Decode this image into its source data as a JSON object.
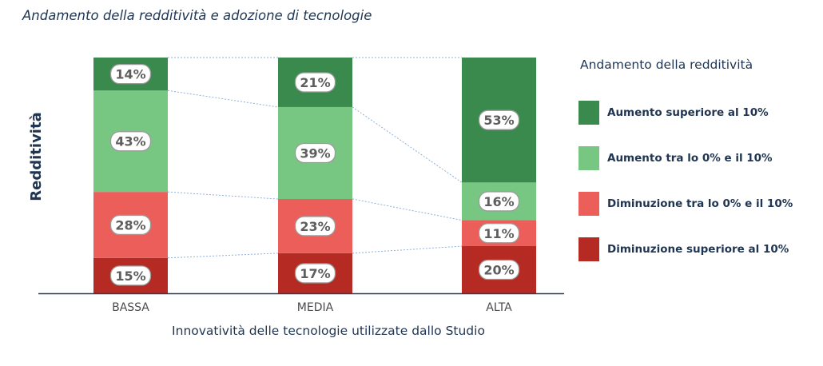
{
  "title": "Andamento della redditività e adozione di tecnologie",
  "chart_data": {
    "type": "bar",
    "stacked": true,
    "percent": true,
    "categories": [
      "BASSA",
      "MEDIA",
      "ALTA"
    ],
    "series": [
      {
        "name": "Diminuzione superiore al 10%",
        "values": [
          15,
          17,
          20
        ],
        "color": "#b52a22"
      },
      {
        "name": "Diminuzione tra lo 0% e il 10%",
        "values": [
          28,
          23,
          11
        ],
        "color": "#ec5e5a"
      },
      {
        "name": "Aumento tra lo 0% e il 10%",
        "values": [
          43,
          39,
          16
        ],
        "color": "#77c782"
      },
      {
        "name": "Aumento superiore al 10%",
        "values": [
          14,
          21,
          53
        ],
        "color": "#3a8a4d"
      }
    ],
    "ylim": [
      0,
      100
    ],
    "xlabel": "Innovatività delle tecnologie utilizzate dallo Studio",
    "ylabel": "Redditività",
    "legend": {
      "title": "Andamento della redditività",
      "position": "right",
      "order": [
        "Aumento superiore al 10%",
        "Aumento tra lo 0% e il 10%",
        "Diminuzione tra lo 0% e il 10%",
        "Diminuzione superiore al 10%"
      ]
    },
    "connector_lines": "dashed-blue"
  }
}
